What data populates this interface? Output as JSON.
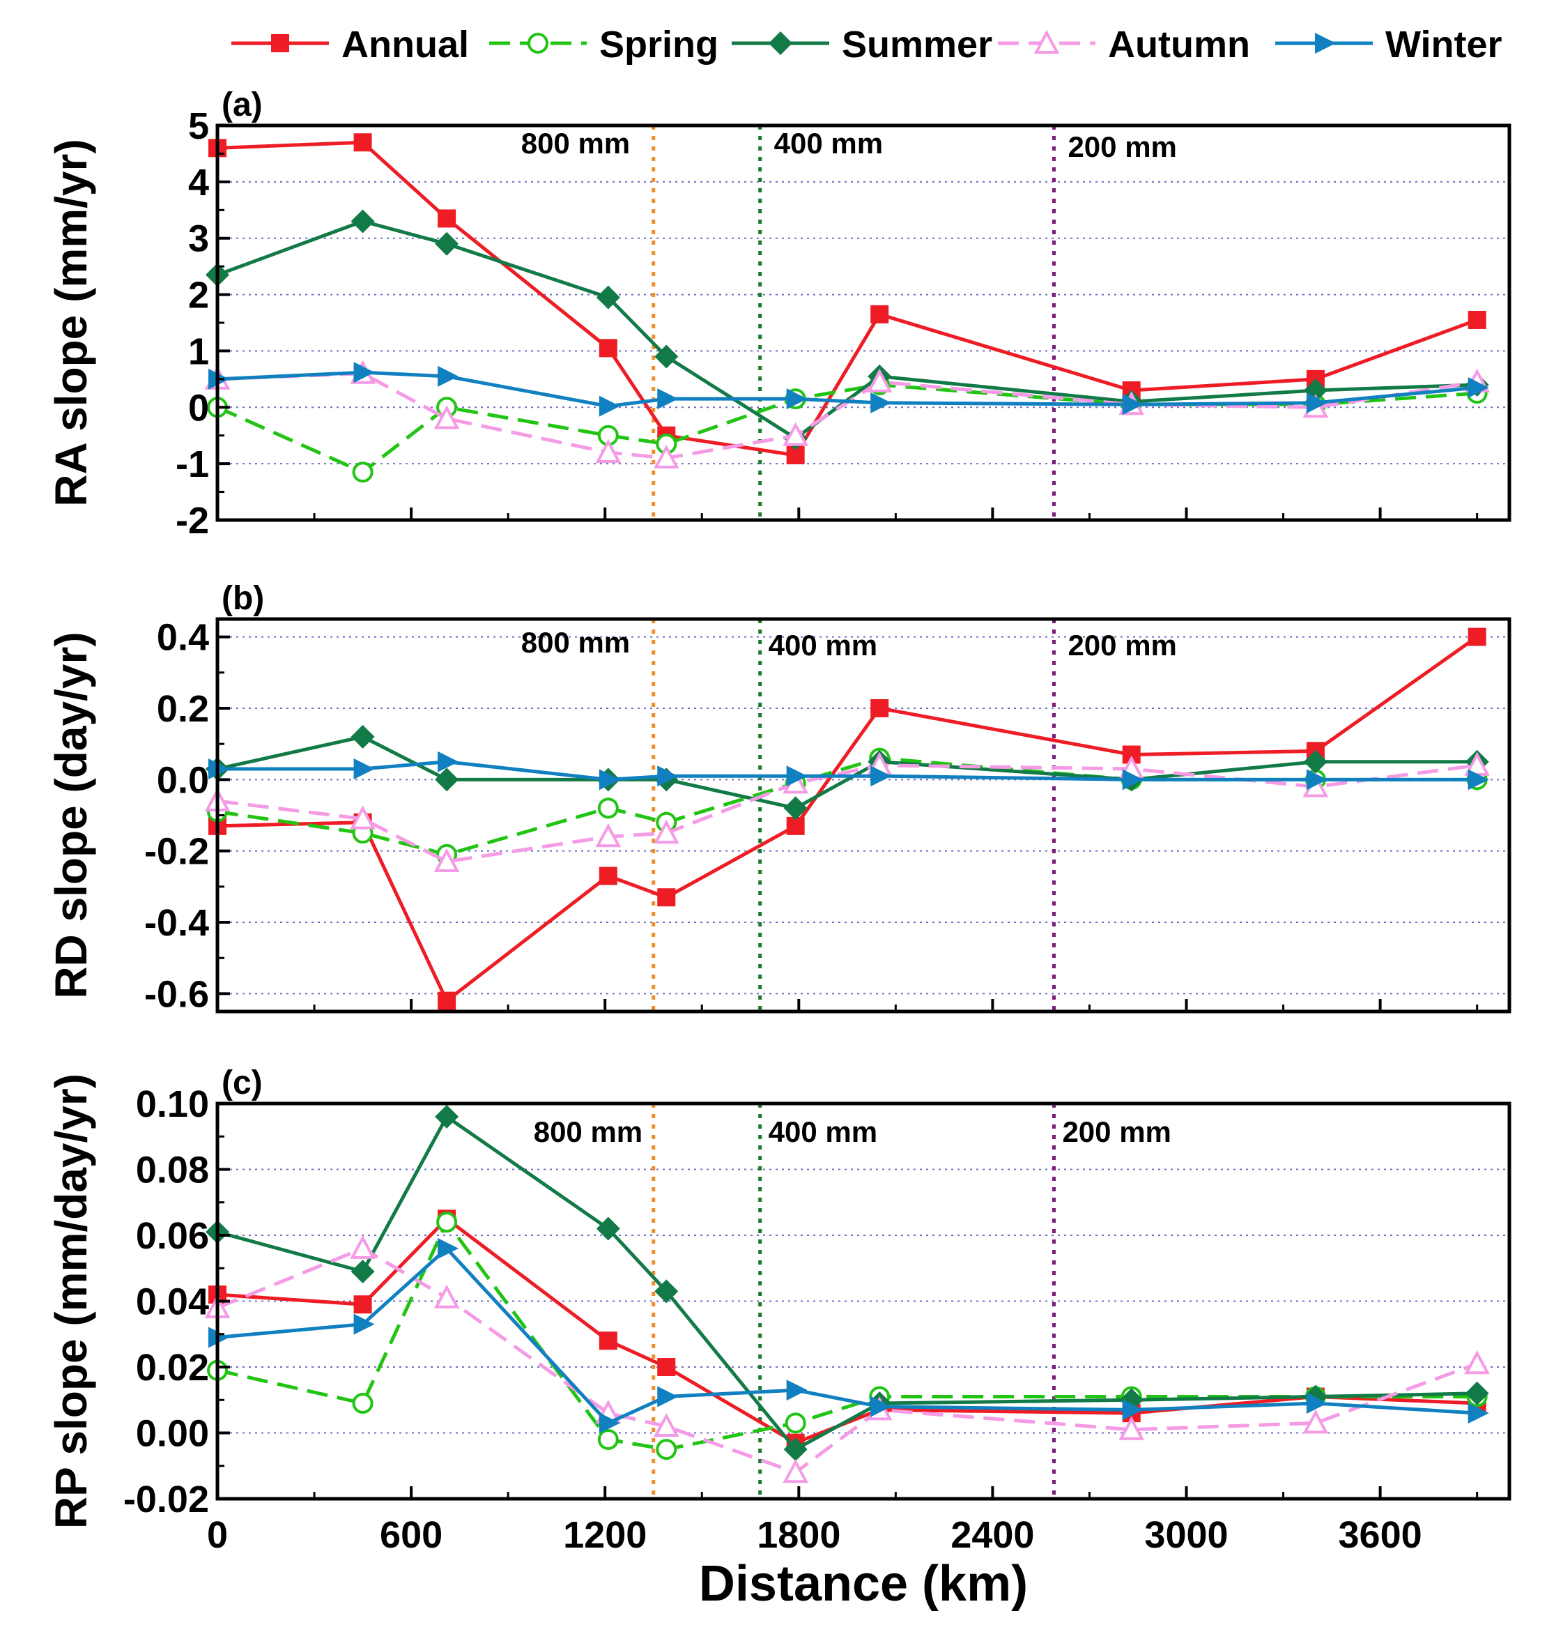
{
  "chart_data": [
    {
      "type": "line",
      "panel_label": "(a)",
      "ylabel": "RA slope (mm/yr)",
      "ylim": [
        -2,
        5
      ],
      "yticks": [
        -2,
        -1,
        0,
        1,
        2,
        3,
        4,
        5
      ],
      "grid": "dotted-horizontal",
      "x": [
        0,
        450,
        710,
        1210,
        1390,
        1790,
        2050,
        2830,
        3400,
        3900
      ],
      "isohyets": [
        {
          "x": 1350,
          "label": "800 mm",
          "color": "#f08c2a"
        },
        {
          "x": 1680,
          "label": "400 mm",
          "color": "#1a7a2e"
        },
        {
          "x": 2590,
          "label": "200 mm",
          "color": "#7b1f78"
        }
      ],
      "series": [
        {
          "name": "Annual",
          "values": [
            4.6,
            4.7,
            3.35,
            1.05,
            -0.5,
            -0.85,
            1.65,
            0.3,
            0.5,
            1.55
          ]
        },
        {
          "name": "Spring",
          "values": [
            0.0,
            -1.15,
            0.0,
            -0.5,
            -0.65,
            0.15,
            0.4,
            0.05,
            0.05,
            0.25
          ]
        },
        {
          "name": "Summer",
          "values": [
            2.35,
            3.3,
            2.9,
            1.95,
            0.9,
            -0.55,
            0.55,
            0.1,
            0.3,
            0.4
          ]
        },
        {
          "name": "Autumn",
          "values": [
            0.5,
            0.6,
            -0.2,
            -0.8,
            -0.9,
            -0.5,
            0.45,
            0.05,
            0.0,
            0.45
          ]
        },
        {
          "name": "Winter",
          "values": [
            0.5,
            0.62,
            0.55,
            0.02,
            0.15,
            0.15,
            0.08,
            0.05,
            0.08,
            0.35
          ]
        }
      ]
    },
    {
      "type": "line",
      "panel_label": "(b)",
      "ylabel": "RD slope (day/yr)",
      "ylim": [
        -0.65,
        0.45
      ],
      "yticks": [
        -0.6,
        -0.4,
        -0.2,
        0.0,
        0.2,
        0.4
      ],
      "ytick_labels": [
        "-0.6",
        "-0.4",
        "-0.2",
        "0.0",
        "0.2",
        "0.4"
      ],
      "grid": "dotted-horizontal",
      "x": [
        0,
        450,
        710,
        1210,
        1390,
        1790,
        2050,
        2830,
        3400,
        3900
      ],
      "isohyets": [
        {
          "x": 1350,
          "label": "800 mm",
          "color": "#f08c2a"
        },
        {
          "x": 1680,
          "label": "400 mm",
          "color": "#1a7a2e"
        },
        {
          "x": 2590,
          "label": "200 mm",
          "color": "#7b1f78"
        }
      ],
      "series": [
        {
          "name": "Annual",
          "values": [
            -0.13,
            -0.12,
            -0.62,
            -0.27,
            -0.33,
            -0.13,
            0.2,
            0.07,
            0.08,
            0.4
          ]
        },
        {
          "name": "Spring",
          "values": [
            -0.09,
            -0.15,
            -0.21,
            -0.08,
            -0.12,
            -0.01,
            0.06,
            0.0,
            0.0,
            0.0
          ]
        },
        {
          "name": "Summer",
          "values": [
            0.03,
            0.12,
            0.0,
            0.0,
            0.0,
            -0.08,
            0.05,
            0.0,
            0.05,
            0.05
          ]
        },
        {
          "name": "Autumn",
          "values": [
            -0.06,
            -0.11,
            -0.23,
            -0.16,
            -0.15,
            -0.01,
            0.04,
            0.03,
            -0.02,
            0.04
          ]
        },
        {
          "name": "Winter",
          "values": [
            0.03,
            0.03,
            0.05,
            0.0,
            0.01,
            0.01,
            0.01,
            0.0,
            0.0,
            0.0
          ]
        }
      ]
    },
    {
      "type": "line",
      "panel_label": "(c)",
      "ylabel": "RP slope (mm/day/yr)",
      "xlabel": "Distance (km)",
      "xlim": [
        0,
        4000
      ],
      "xticks": [
        0,
        600,
        1200,
        1800,
        2400,
        3000,
        3600
      ],
      "ylim": [
        -0.02,
        0.1
      ],
      "yticks": [
        -0.02,
        0.0,
        0.02,
        0.04,
        0.06,
        0.08,
        0.1
      ],
      "ytick_labels": [
        "-0.02",
        "0.00",
        "0.02",
        "0.04",
        "0.06",
        "0.08",
        "0.10"
      ],
      "grid": "dotted-horizontal",
      "x": [
        0,
        450,
        710,
        1210,
        1390,
        1790,
        2050,
        2830,
        3400,
        3900
      ],
      "isohyets": [
        {
          "x": 1350,
          "label": "800 mm",
          "color": "#f08c2a"
        },
        {
          "x": 1680,
          "label": "400 mm",
          "color": "#1a7a2e"
        },
        {
          "x": 2590,
          "label": "200 mm",
          "color": "#7b1f78"
        }
      ],
      "series": [
        {
          "name": "Annual",
          "values": [
            0.042,
            0.039,
            0.065,
            0.028,
            0.02,
            -0.003,
            0.007,
            0.006,
            0.011,
            0.009
          ]
        },
        {
          "name": "Spring",
          "values": [
            0.019,
            0.009,
            0.064,
            -0.002,
            -0.005,
            0.003,
            0.011,
            0.011,
            0.011,
            0.011
          ]
        },
        {
          "name": "Summer",
          "values": [
            0.061,
            0.049,
            0.096,
            0.062,
            0.043,
            -0.005,
            0.009,
            0.01,
            0.011,
            0.012
          ]
        },
        {
          "name": "Autumn",
          "values": [
            0.038,
            0.056,
            0.041,
            0.006,
            0.002,
            -0.012,
            0.007,
            0.001,
            0.003,
            0.021
          ]
        },
        {
          "name": "Winter",
          "values": [
            0.029,
            0.033,
            0.056,
            0.003,
            0.011,
            0.013,
            0.008,
            0.007,
            0.009,
            0.006
          ]
        }
      ]
    }
  ],
  "legend": [
    {
      "name": "Annual",
      "color": "#ee1c24",
      "marker": "square-filled",
      "dash": "solid"
    },
    {
      "name": "Spring",
      "color": "#22c414",
      "marker": "circle-open",
      "dash": "dashed"
    },
    {
      "name": "Summer",
      "color": "#127a47",
      "marker": "diamond-filled",
      "dash": "solid"
    },
    {
      "name": "Autumn",
      "color": "#f59be6",
      "marker": "triangle-up-open",
      "dash": "dashed"
    },
    {
      "name": "Winter",
      "color": "#1180c0",
      "marker": "triangle-right-filled",
      "dash": "solid"
    }
  ]
}
